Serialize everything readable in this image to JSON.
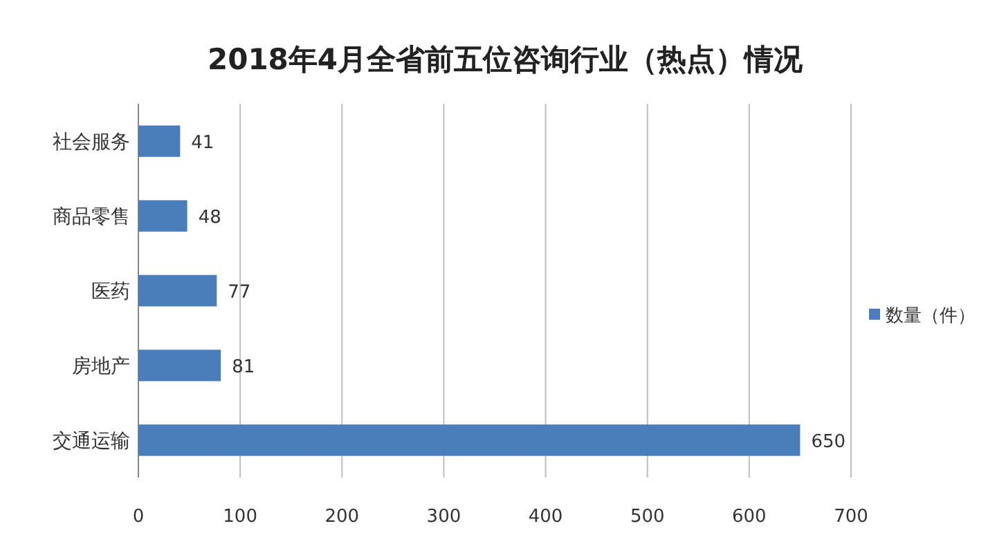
{
  "chart_data": {
    "type": "bar",
    "orientation": "horizontal",
    "title": "2018年4月全省前五位咨询行业（热点）情况",
    "categories": [
      "社会服务",
      "商品零售",
      "医药",
      "房地产",
      "交通运输"
    ],
    "series": [
      {
        "name": "数量（件）",
        "color": "#4a7ebb",
        "values": [
          41,
          48,
          77,
          81,
          650
        ]
      }
    ],
    "xlim": [
      0,
      700
    ],
    "xticks": [
      0,
      100,
      200,
      300,
      400,
      500,
      600,
      700
    ],
    "grid": "x",
    "legend": "right",
    "data_labels": true
  }
}
